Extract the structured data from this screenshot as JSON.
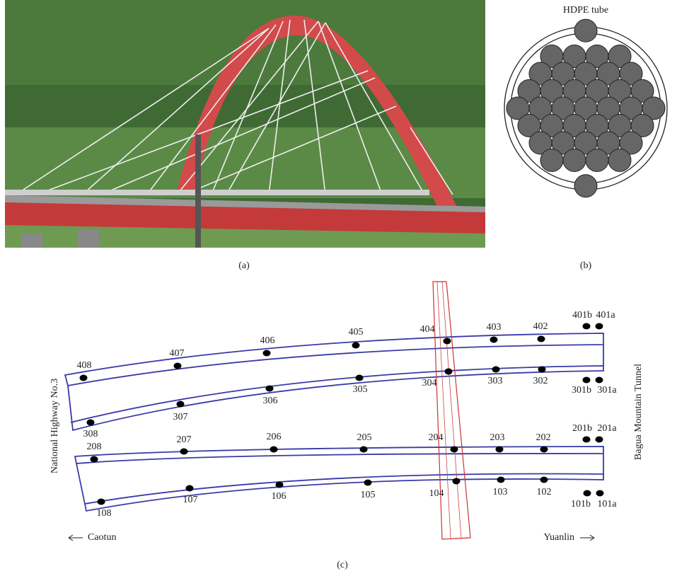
{
  "panel_a": {
    "caption": "(a)"
  },
  "panel_b": {
    "title": "HDPE tube",
    "caption": "(b)"
  },
  "panel_c": {
    "caption": "(c)",
    "left_label": "National Highway No.3",
    "right_label": "Bagua Mountain Tunnel",
    "left_direction": "Caotun",
    "right_direction": "Yuanlin",
    "points": [
      "408",
      "407",
      "406",
      "405",
      "404",
      "403",
      "402",
      "401b",
      "401a",
      "308",
      "307",
      "306",
      "305",
      "304",
      "303",
      "302",
      "301b",
      "301a",
      "208",
      "207",
      "206",
      "205",
      "204",
      "203",
      "202",
      "201b",
      "201a",
      "108",
      "107",
      "106",
      "105",
      "104",
      "103",
      "102",
      "101b",
      "101a"
    ]
  }
}
